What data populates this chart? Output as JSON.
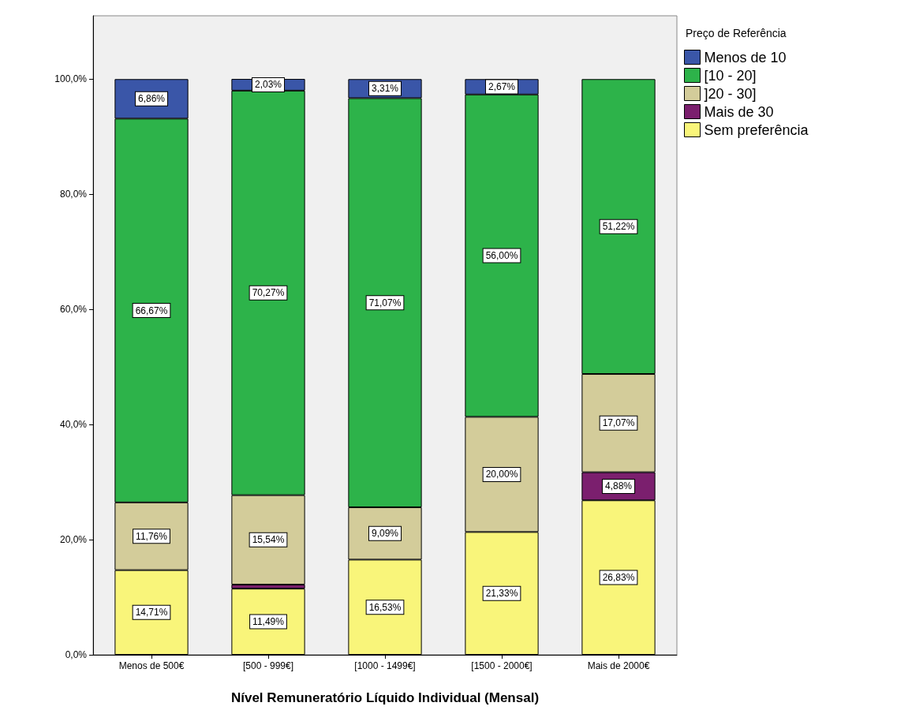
{
  "chart_data": {
    "type": "bar",
    "stacked": true,
    "xlabel": "Nível Remuneratório Líquido Individual (Mensal)",
    "legend_title": "Preço de Referência",
    "legend": "top right",
    "categories": [
      "Menos de 500€",
      "[500 - 999€]",
      "[1000 - 1499€]",
      "[1500 - 2000€]",
      "Mais de 2000€"
    ],
    "ylim": [
      0,
      111
    ],
    "yticks": [
      {
        "value": 0,
        "label": "0,0%"
      },
      {
        "value": 20,
        "label": "20,0%"
      },
      {
        "value": 40,
        "label": "40,0%"
      },
      {
        "value": 60,
        "label": "60,0%"
      },
      {
        "value": 80,
        "label": "80,0%"
      },
      {
        "value": 100,
        "label": "100,0%"
      }
    ],
    "grid": false,
    "series": [
      {
        "name": "Sem preferência",
        "color": "#f9f57a",
        "values": [
          14.71,
          11.49,
          16.53,
          21.33,
          26.83
        ],
        "value_labels": [
          "14,71%",
          "11,49%",
          "16,53%",
          "21,33%",
          "26,83%"
        ]
      },
      {
        "name": "Mais de 30",
        "color": "#7b1f6e",
        "values": [
          null,
          0.7,
          null,
          null,
          4.88
        ],
        "value_labels": [
          null,
          null,
          null,
          null,
          "4,88%"
        ]
      },
      {
        "name": "]20 - 30]",
        "color": "#d3cc9a",
        "values": [
          11.76,
          15.54,
          9.09,
          20.0,
          17.07
        ],
        "value_labels": [
          "11,76%",
          "15,54%",
          "9,09%",
          "20,00%",
          "17,07%"
        ]
      },
      {
        "name": "[10 - 20]",
        "color": "#2db34a",
        "values": [
          66.67,
          70.27,
          71.07,
          56.0,
          51.22
        ],
        "value_labels": [
          "66,67%",
          "70,27%",
          "71,07%",
          "56,00%",
          "51,22%"
        ]
      },
      {
        "name": "Menos de 10",
        "color": "#3a56a8",
        "values": [
          6.86,
          2.03,
          3.31,
          2.67,
          null
        ],
        "value_labels": [
          "6,86%",
          "2,03%",
          "3,31%",
          "2,67%",
          null
        ]
      }
    ]
  }
}
